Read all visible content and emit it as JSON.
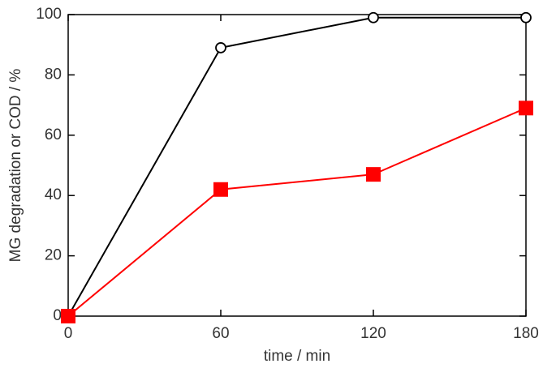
{
  "chart_data": {
    "type": "line",
    "xlabel": "time / min",
    "ylabel": "MG degradation or COD / %",
    "x": [
      0,
      60,
      120,
      180
    ],
    "series": [
      {
        "color": "#000000",
        "marker": "circle",
        "values": [
          0,
          89,
          99,
          99
        ]
      },
      {
        "color": "#ff0000",
        "marker": "square",
        "values": [
          0,
          42,
          47,
          69
        ]
      }
    ],
    "xlim": [
      0,
      180
    ],
    "xticks": [
      0,
      60,
      120,
      180
    ],
    "ylim": [
      0,
      100
    ],
    "yticks": [
      0,
      20,
      40,
      60,
      80,
      100
    ]
  }
}
